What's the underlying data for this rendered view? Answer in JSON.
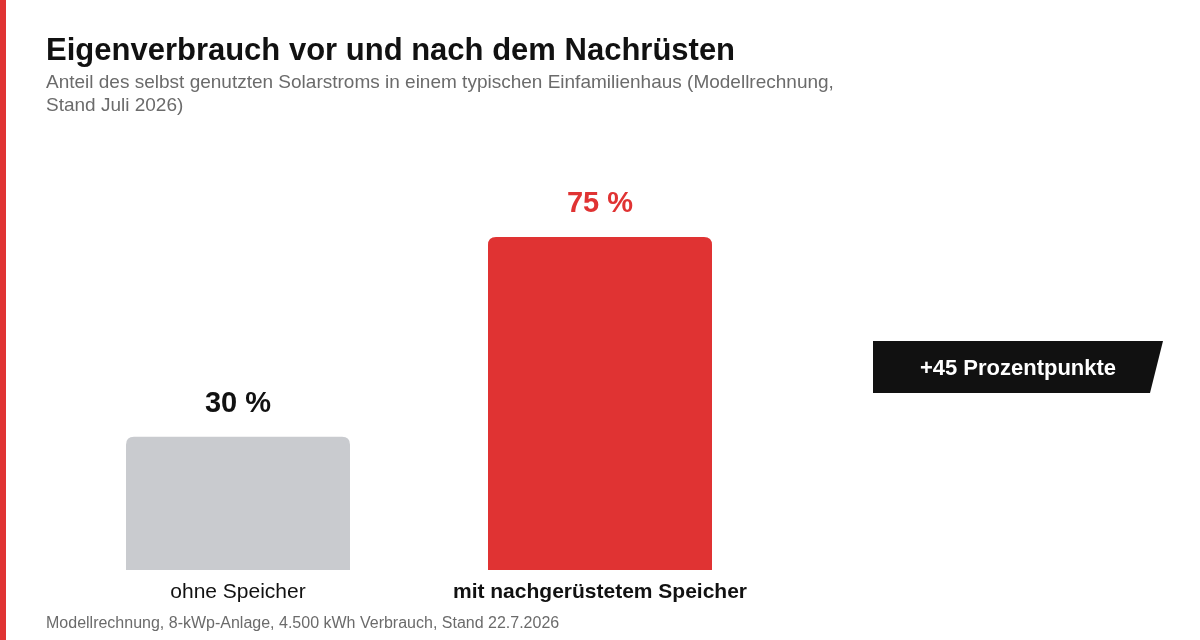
{
  "chart_data": {
    "type": "bar",
    "title": "Eigenverbrauch vor und nach dem Nachrüsten",
    "subtitle": "Anteil des selbst genutzten Solarstroms in einem typischen Einfamilienhaus (Modellrechnung, Stand Juli 2026)",
    "categories": [
      "ohne Speicher",
      "mit nachgerüstetem Speicher"
    ],
    "values": [
      30,
      75
    ],
    "colors": [
      "#c9cbcf",
      "#e03333"
    ],
    "value_labels": [
      "30 %",
      "75 %"
    ],
    "annotations": [
      "+45 Prozentpunkte",
      "Modellrechnung, 8-kWp-Anlage, 4.500 kWh Verbrauch, Stand 22.7.2026"
    ]
  }
}
